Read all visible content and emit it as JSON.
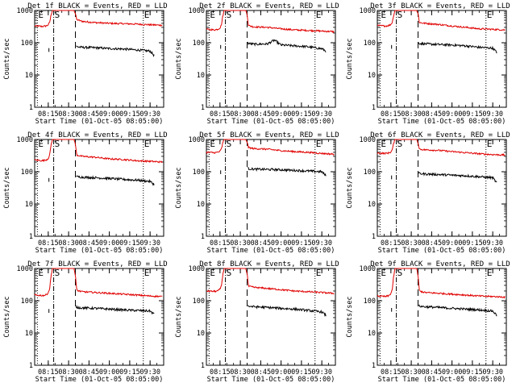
{
  "colors": {
    "events": "#000000",
    "lld": "#e00000",
    "axis": "#000000",
    "background": "#ffffff"
  },
  "common": {
    "xlabel": "Start Time (01-Oct-05 08:05:00)",
    "ylabel": "Counts/sec",
    "y_scale": "log",
    "y_ticks": [
      {
        "v": 1,
        "label": "1"
      },
      {
        "v": 10,
        "label": "10"
      },
      {
        "v": 100,
        "label": "100"
      },
      {
        "v": 1000,
        "label": "1000"
      }
    ],
    "x_ticks": [
      {
        "v": 10,
        "label": "08:15"
      },
      {
        "v": 25,
        "label": "08:30"
      },
      {
        "v": 40,
        "label": "08:45"
      },
      {
        "v": 55,
        "label": "09:00"
      },
      {
        "v": 70,
        "label": "09:15"
      },
      {
        "v": 85,
        "label": "09:30"
      }
    ],
    "xlim": [
      0,
      95
    ],
    "ylim": [
      1,
      1000
    ],
    "markers": [
      {
        "x": 2,
        "label": "E",
        "line": "dotted"
      },
      {
        "x": 14,
        "label": "S",
        "line": "dashdot"
      },
      {
        "x": 30,
        "label": "",
        "line": "dashed"
      },
      {
        "x": 80,
        "label": "E",
        "line": "dotted"
      }
    ]
  },
  "chart_data": [
    {
      "type": "line",
      "title": "Det 1f BLACK = Events, RED = LLD",
      "series": [
        {
          "name": "LLD",
          "color": "#e00000",
          "x": [
            0,
            6,
            8,
            9,
            10,
            11,
            12,
            13,
            16,
            20,
            25,
            28,
            29,
            30,
            31,
            35,
            45,
            55,
            65,
            75,
            85,
            94
          ],
          "y": [
            330,
            320,
            330,
            340,
            360,
            420,
            700,
            1000,
            1000,
            1000,
            1000,
            1000,
            1000,
            800,
            520,
            460,
            420,
            400,
            390,
            380,
            360,
            350
          ]
        },
        {
          "name": "Events",
          "color": "#000000",
          "x": [
            30.5,
            31,
            35,
            45,
            55,
            65,
            75,
            85,
            88
          ],
          "y": [
            80,
            75,
            72,
            70,
            66,
            64,
            60,
            55,
            40
          ]
        }
      ]
    },
    {
      "type": "line",
      "title": "Det 2f BLACK = Events, RED = LLD",
      "series": [
        {
          "name": "LLD",
          "color": "#e00000",
          "x": [
            0,
            6,
            8,
            9,
            10,
            11,
            12,
            13,
            16,
            20,
            25,
            28,
            29,
            30,
            31,
            35,
            45,
            55,
            65,
            75,
            85,
            94
          ],
          "y": [
            260,
            250,
            260,
            270,
            290,
            350,
            650,
            1000,
            1000,
            1000,
            1000,
            1000,
            1000,
            750,
            340,
            310,
            300,
            270,
            250,
            240,
            230,
            220
          ]
        },
        {
          "name": "Events",
          "color": "#000000",
          "x": [
            30.5,
            31,
            35,
            45,
            50,
            55,
            65,
            75,
            85,
            88
          ],
          "y": [
            100,
            95,
            90,
            92,
            120,
            85,
            80,
            75,
            65,
            55
          ]
        }
      ]
    },
    {
      "type": "line",
      "title": "Det 3f BLACK = Events, RED = LLD",
      "series": [
        {
          "name": "LLD",
          "color": "#e00000",
          "x": [
            0,
            6,
            8,
            9,
            10,
            11,
            12,
            13,
            16,
            20,
            25,
            28,
            29,
            30,
            31,
            35,
            45,
            55,
            65,
            75,
            85,
            94
          ],
          "y": [
            340,
            330,
            340,
            350,
            370,
            430,
            700,
            1000,
            1000,
            1000,
            1000,
            1000,
            1000,
            800,
            420,
            400,
            370,
            330,
            300,
            270,
            260,
            250
          ]
        },
        {
          "name": "Events",
          "color": "#000000",
          "x": [
            30.5,
            31,
            35,
            45,
            55,
            65,
            75,
            85,
            88
          ],
          "y": [
            100,
            95,
            92,
            88,
            85,
            80,
            72,
            68,
            50
          ]
        }
      ]
    },
    {
      "type": "line",
      "title": "Det 4f BLACK = Events, RED = LLD",
      "series": [
        {
          "name": "LLD",
          "color": "#e00000",
          "x": [
            0,
            6,
            8,
            9,
            10,
            11,
            12,
            13,
            16,
            20,
            25,
            28,
            29,
            30,
            31,
            35,
            45,
            55,
            65,
            75,
            85,
            94
          ],
          "y": [
            230,
            220,
            230,
            240,
            260,
            320,
            650,
            1000,
            1000,
            1000,
            1000,
            1000,
            1000,
            700,
            330,
            300,
            280,
            250,
            240,
            220,
            210,
            200
          ]
        },
        {
          "name": "Events",
          "color": "#000000",
          "x": [
            30.5,
            31,
            35,
            45,
            55,
            65,
            75,
            85,
            88
          ],
          "y": [
            75,
            70,
            68,
            65,
            62,
            58,
            55,
            50,
            40
          ]
        }
      ]
    },
    {
      "type": "line",
      "title": "Det 5f BLACK = Events, RED = LLD",
      "series": [
        {
          "name": "LLD",
          "color": "#e00000",
          "x": [
            0,
            6,
            8,
            9,
            10,
            11,
            12,
            13,
            16,
            20,
            25,
            28,
            29,
            30,
            31,
            35,
            45,
            55,
            65,
            75,
            85,
            94
          ],
          "y": [
            400,
            390,
            400,
            410,
            430,
            500,
            750,
            1000,
            1000,
            1000,
            1000,
            1000,
            1000,
            850,
            560,
            520,
            500,
            450,
            420,
            400,
            370,
            350
          ]
        },
        {
          "name": "Events",
          "color": "#000000",
          "x": [
            30.5,
            31,
            35,
            45,
            55,
            65,
            75,
            85,
            88
          ],
          "y": [
            130,
            125,
            120,
            118,
            115,
            110,
            105,
            100,
            75
          ]
        }
      ]
    },
    {
      "type": "line",
      "title": "Det 6f BLACK = Events, RED = LLD",
      "series": [
        {
          "name": "LLD",
          "color": "#e00000",
          "x": [
            0,
            6,
            8,
            9,
            10,
            11,
            12,
            13,
            16,
            20,
            25,
            28,
            29,
            30,
            31,
            35,
            45,
            55,
            65,
            75,
            85,
            94
          ],
          "y": [
            380,
            370,
            380,
            390,
            410,
            480,
            750,
            1000,
            1000,
            1000,
            1000,
            1000,
            1000,
            800,
            500,
            480,
            460,
            420,
            390,
            360,
            340,
            330
          ]
        },
        {
          "name": "Events",
          "color": "#000000",
          "x": [
            30.5,
            31,
            35,
            45,
            55,
            65,
            75,
            85,
            88
          ],
          "y": [
            90,
            88,
            85,
            82,
            78,
            75,
            70,
            65,
            45
          ]
        }
      ]
    },
    {
      "type": "line",
      "title": "Det 7f BLACK = Events, RED = LLD",
      "series": [
        {
          "name": "LLD",
          "color": "#e00000",
          "x": [
            0,
            6,
            8,
            9,
            10,
            11,
            12,
            13,
            16,
            20,
            25,
            28,
            29,
            30,
            31,
            35,
            45,
            55,
            65,
            75,
            85,
            94
          ],
          "y": [
            150,
            145,
            150,
            160,
            180,
            230,
            550,
            1000,
            1000,
            1000,
            1000,
            1000,
            1000,
            600,
            210,
            190,
            180,
            170,
            160,
            150,
            140,
            135
          ]
        },
        {
          "name": "Events",
          "color": "#000000",
          "x": [
            30.5,
            31,
            35,
            45,
            55,
            65,
            75,
            85,
            88
          ],
          "y": [
            65,
            62,
            60,
            58,
            55,
            52,
            50,
            48,
            38
          ]
        }
      ]
    },
    {
      "type": "line",
      "title": "Det 8f BLACK = Events, RED = LLD",
      "series": [
        {
          "name": "LLD",
          "color": "#e00000",
          "x": [
            0,
            6,
            8,
            9,
            10,
            11,
            12,
            13,
            16,
            20,
            25,
            28,
            29,
            30,
            31,
            35,
            45,
            55,
            65,
            75,
            85,
            94
          ],
          "y": [
            200,
            195,
            200,
            210,
            230,
            280,
            600,
            1000,
            1000,
            1000,
            1000,
            1000,
            1000,
            700,
            280,
            260,
            240,
            220,
            200,
            190,
            180,
            170
          ]
        },
        {
          "name": "Events",
          "color": "#000000",
          "x": [
            30.5,
            31,
            35,
            45,
            55,
            65,
            75,
            85,
            88
          ],
          "y": [
            70,
            68,
            65,
            62,
            58,
            55,
            50,
            45,
            35
          ]
        }
      ]
    },
    {
      "type": "line",
      "title": "Det 9f BLACK = Events, RED = LLD",
      "series": [
        {
          "name": "LLD",
          "color": "#e00000",
          "x": [
            0,
            6,
            8,
            9,
            10,
            11,
            12,
            13,
            16,
            20,
            25,
            28,
            29,
            30,
            31,
            35,
            45,
            55,
            65,
            75,
            85,
            94
          ],
          "y": [
            140,
            135,
            140,
            150,
            170,
            220,
            550,
            1000,
            1000,
            1000,
            1000,
            1000,
            1000,
            600,
            200,
            180,
            170,
            160,
            150,
            140,
            135,
            130
          ]
        },
        {
          "name": "Events",
          "color": "#000000",
          "x": [
            30.5,
            31,
            35,
            45,
            55,
            65,
            75,
            85,
            88
          ],
          "y": [
            70,
            68,
            65,
            62,
            58,
            55,
            52,
            48,
            35
          ]
        }
      ]
    }
  ]
}
